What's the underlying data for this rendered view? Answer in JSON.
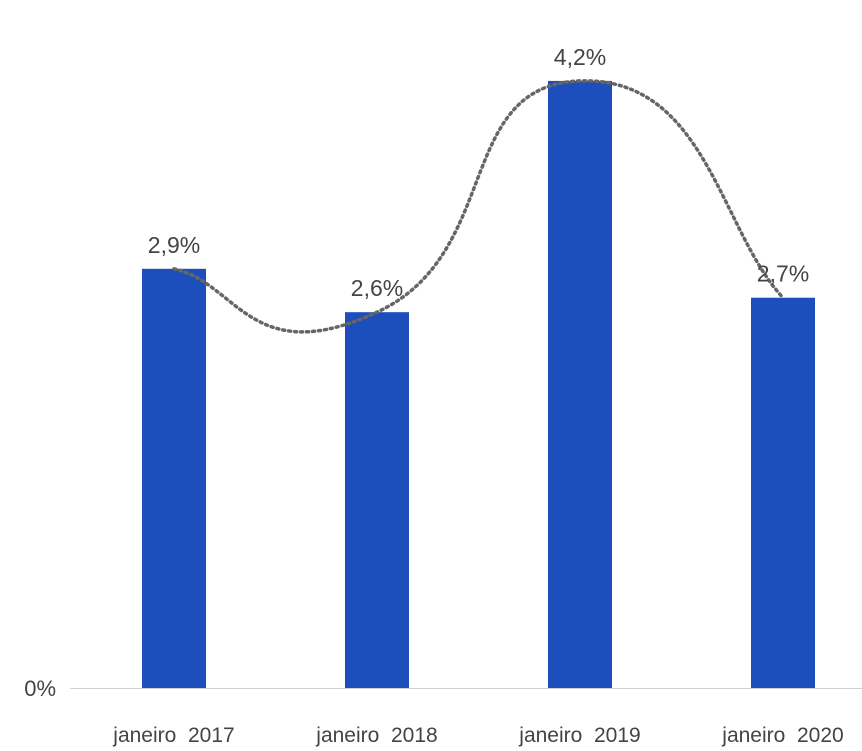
{
  "chart_data": {
    "type": "bar",
    "title": "",
    "xlabel": "",
    "ylabel": "",
    "categories": [
      "janeiro  2017",
      "janeiro  2018",
      "janeiro  2019",
      "janeiro  2020"
    ],
    "values": [
      2.9,
      2.6,
      4.2,
      2.7
    ],
    "data_labels": [
      "2,9%",
      "2,6%",
      "4,2%",
      "2,7%"
    ],
    "y_tick_labels": [
      "0%"
    ],
    "ylim": [
      0,
      4.4
    ],
    "grid": false,
    "legend": "none",
    "trendline": "smoothed dotted curve through data",
    "colors": {
      "bar": "#1c4fbb",
      "trend": "#666666",
      "axis": "#d0d0d0"
    }
  }
}
